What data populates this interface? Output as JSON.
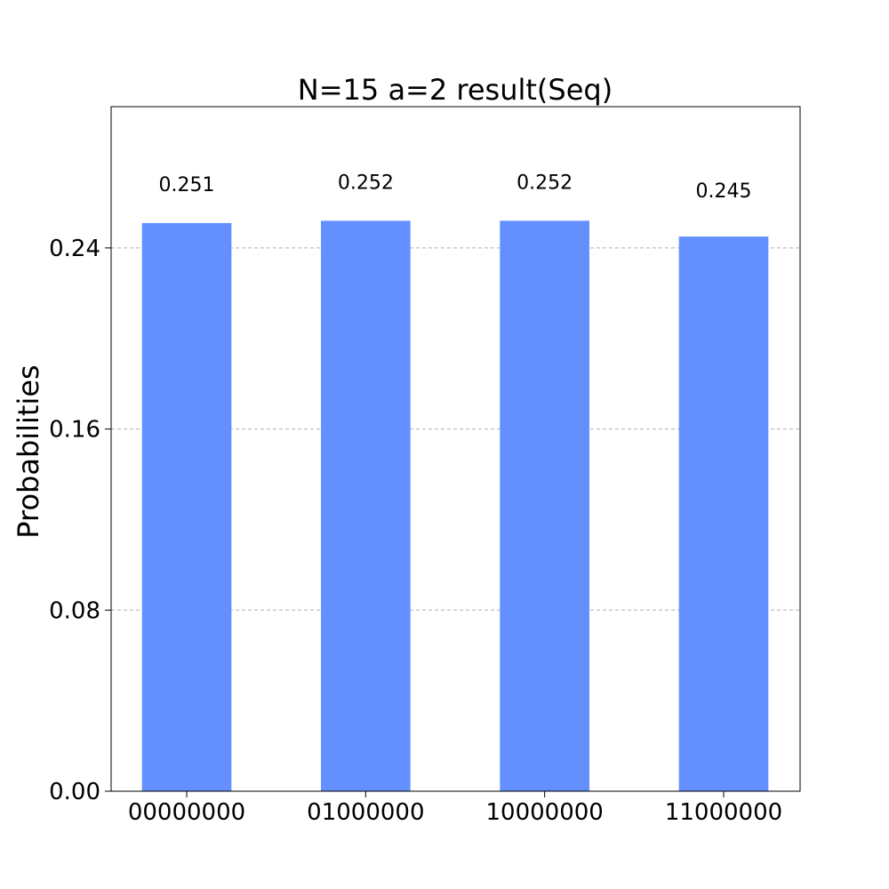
{
  "chart_data": {
    "type": "bar",
    "title": "N=15 a=2 result(Seq)",
    "xlabel": "",
    "ylabel": "Probabilities",
    "categories": [
      "00000000",
      "01000000",
      "10000000",
      "11000000"
    ],
    "values": [
      0.251,
      0.252,
      0.252,
      0.245
    ],
    "data_labels": [
      "0.251",
      "0.252",
      "0.252",
      "0.245"
    ],
    "yticks": [
      0.0,
      0.08,
      0.16,
      0.24
    ],
    "ytick_labels": [
      "0.00",
      "0.08",
      "0.16",
      "0.24"
    ],
    "ylim": [
      0,
      0.3024
    ],
    "grid": "y-dashed",
    "bar_color": "#648fff"
  }
}
